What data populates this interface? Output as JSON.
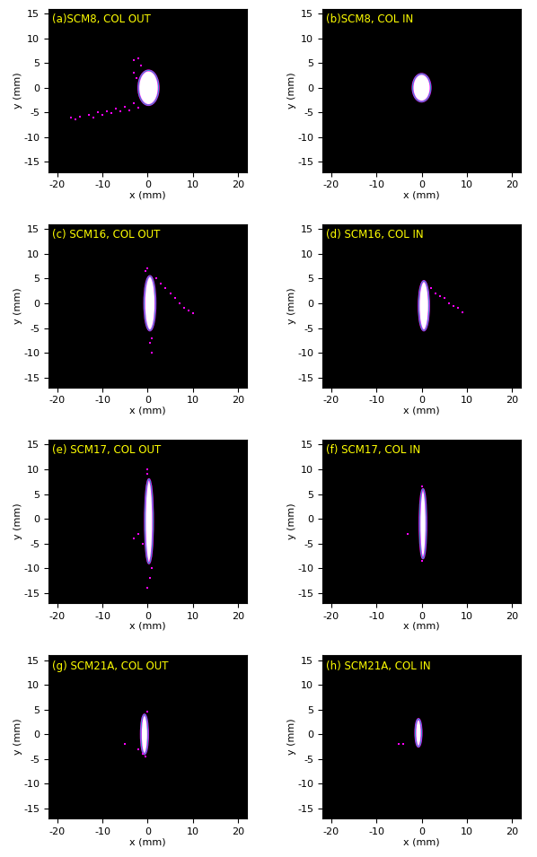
{
  "chart_data": [
    {
      "type": "scatter",
      "title": "(a)SCM8, COL OUT",
      "x_label": "x (mm)",
      "y_label": "y (mm)",
      "xlim": [
        -22,
        22
      ],
      "ylim": [
        -17,
        16
      ],
      "xticks": [
        -20,
        -10,
        0,
        10,
        20
      ],
      "yticks": [
        -15,
        -10,
        -5,
        0,
        5,
        10,
        15
      ],
      "series": [
        {
          "type": "ellipse",
          "color": "#ffffff",
          "x": [
            0.2
          ],
          "y": [
            0
          ],
          "width": [
            4.5
          ],
          "height": [
            7
          ]
        },
        {
          "type": "scatter",
          "color": "#ff00ff",
          "marker": "s",
          "x": [
            -17,
            -15,
            -13,
            -11,
            -9,
            -7,
            -5,
            -3,
            -16,
            -12,
            -10,
            -8,
            -6,
            -4,
            -2,
            -3,
            -2,
            -1.5,
            -3,
            -2.5
          ],
          "y": [
            -6,
            -5.8,
            -5.5,
            -5,
            -4.8,
            -4.3,
            -3.8,
            -3.2,
            -6.3,
            -6,
            -5.5,
            -5.2,
            -4.8,
            -4.5,
            -4,
            5.5,
            6,
            4.5,
            3,
            2
          ]
        }
      ]
    },
    {
      "type": "scatter",
      "title": "(b)SCM8, COL IN",
      "x_label": "x (mm)",
      "y_label": "y (mm)",
      "xlim": [
        -22,
        22
      ],
      "ylim": [
        -17,
        16
      ],
      "xticks": [
        -20,
        -10,
        0,
        10,
        20
      ],
      "yticks": [
        -15,
        -10,
        -5,
        0,
        5,
        10,
        15
      ],
      "series": [
        {
          "type": "ellipse",
          "color": "#ffffff",
          "x": [
            0
          ],
          "y": [
            0
          ],
          "width": [
            4
          ],
          "height": [
            5.6
          ]
        }
      ]
    },
    {
      "type": "scatter",
      "title": "(c) SCM16, COL OUT",
      "x_label": "x (mm)",
      "y_label": "y (mm)",
      "xlim": [
        -22,
        22
      ],
      "ylim": [
        -17,
        16
      ],
      "xticks": [
        -20,
        -10,
        0,
        10,
        20
      ],
      "yticks": [
        -15,
        -10,
        -5,
        0,
        5,
        10,
        15
      ],
      "series": [
        {
          "type": "ellipse",
          "color": "#ffffff",
          "x": [
            0.5
          ],
          "y": [
            0
          ],
          "width": [
            2.5
          ],
          "height": [
            11
          ]
        },
        {
          "type": "scatter",
          "color": "#ff00ff",
          "marker": "s",
          "x": [
            2,
            3,
            4,
            5,
            6,
            7,
            8,
            9,
            10,
            0,
            0.5,
            1,
            -0.5,
            1
          ],
          "y": [
            5,
            4,
            3,
            2,
            1,
            0,
            -1,
            -1.5,
            -2,
            7,
            -8,
            -10,
            6.5,
            -7
          ]
        }
      ]
    },
    {
      "type": "scatter",
      "title": "(d) SCM16, COL IN",
      "x_label": "x (mm)",
      "y_label": "y (mm)",
      "xlim": [
        -22,
        22
      ],
      "ylim": [
        -17,
        16
      ],
      "xticks": [
        -20,
        -10,
        0,
        10,
        20
      ],
      "yticks": [
        -15,
        -10,
        -5,
        0,
        5,
        10,
        15
      ],
      "series": [
        {
          "type": "ellipse",
          "color": "#ffffff",
          "x": [
            0.5
          ],
          "y": [
            -0.5
          ],
          "width": [
            2.3
          ],
          "height": [
            10
          ]
        },
        {
          "type": "scatter",
          "color": "#ff00ff",
          "marker": "s",
          "x": [
            2,
            3,
            4,
            5,
            6,
            7,
            8,
            9
          ],
          "y": [
            3,
            2,
            1.5,
            1,
            0,
            -0.5,
            -1,
            -1.8
          ]
        }
      ]
    },
    {
      "type": "scatter",
      "title": "(e) SCM17, COL OUT",
      "x_label": "x (mm)",
      "y_label": "y (mm)",
      "xlim": [
        -22,
        22
      ],
      "ylim": [
        -17,
        16
      ],
      "xticks": [
        -20,
        -10,
        0,
        10,
        20
      ],
      "yticks": [
        -15,
        -10,
        -5,
        0,
        5,
        10,
        15
      ],
      "series": [
        {
          "type": "ellipse",
          "color": "#ffffff",
          "x": [
            0.3
          ],
          "y": [
            -0.5
          ],
          "width": [
            1.8
          ],
          "height": [
            17
          ]
        },
        {
          "type": "scatter",
          "color": "#ff00ff",
          "marker": "s",
          "x": [
            0,
            0.5,
            0,
            -2,
            -3,
            -1,
            0,
            1
          ],
          "y": [
            10,
            -12,
            -14,
            -3,
            -4,
            -5,
            9,
            -10
          ]
        }
      ]
    },
    {
      "type": "scatter",
      "title": "(f) SCM17, COL IN",
      "x_label": "x (mm)",
      "y_label": "y (mm)",
      "xlim": [
        -22,
        22
      ],
      "ylim": [
        -17,
        16
      ],
      "xticks": [
        -20,
        -10,
        0,
        10,
        20
      ],
      "yticks": [
        -15,
        -10,
        -5,
        0,
        5,
        10,
        15
      ],
      "series": [
        {
          "type": "ellipse",
          "color": "#ffffff",
          "x": [
            0.3
          ],
          "y": [
            -1
          ],
          "width": [
            1.5
          ],
          "height": [
            14
          ]
        },
        {
          "type": "scatter",
          "color": "#ff00ff",
          "marker": "s",
          "x": [
            -3,
            0,
            0
          ],
          "y": [
            -3,
            6.5,
            -8.5
          ]
        }
      ]
    },
    {
      "type": "scatter",
      "title": "(g) SCM21A, COL OUT",
      "x_label": "x (mm)",
      "y_label": "y (mm)",
      "xlim": [
        -22,
        22
      ],
      "ylim": [
        -17,
        16
      ],
      "xticks": [
        -20,
        -10,
        0,
        10,
        20
      ],
      "yticks": [
        -15,
        -10,
        -5,
        0,
        5,
        10,
        15
      ],
      "series": [
        {
          "type": "ellipse",
          "color": "#ffffff",
          "x": [
            -0.7
          ],
          "y": [
            0
          ],
          "width": [
            1.6
          ],
          "height": [
            8
          ]
        },
        {
          "type": "scatter",
          "color": "#ff00ff",
          "marker": "s",
          "x": [
            -5,
            0,
            -0.5,
            -2,
            -1
          ],
          "y": [
            -2,
            4.5,
            -4.5,
            -3,
            -4
          ]
        }
      ]
    },
    {
      "type": "scatter",
      "title": "(h) SCM21A, COL IN",
      "x_label": "x (mm)",
      "y_label": "y (mm)",
      "xlim": [
        -22,
        22
      ],
      "ylim": [
        -17,
        16
      ],
      "xticks": [
        -20,
        -10,
        0,
        10,
        20
      ],
      "yticks": [
        -15,
        -10,
        -5,
        0,
        5,
        10,
        15
      ],
      "series": [
        {
          "type": "ellipse",
          "color": "#ffffff",
          "x": [
            -0.7
          ],
          "y": [
            0.3
          ],
          "width": [
            1.4
          ],
          "height": [
            5.6
          ]
        },
        {
          "type": "scatter",
          "color": "#ff00ff",
          "marker": "s",
          "x": [
            -5,
            -4
          ],
          "y": [
            -2,
            -2
          ]
        }
      ]
    }
  ]
}
